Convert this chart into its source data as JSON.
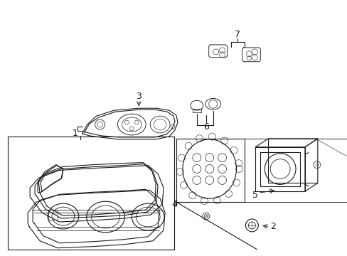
{
  "bg_color": "#ffffff",
  "line_color": "#1a1a1a",
  "lw": 0.8,
  "fig_w": 4.89,
  "fig_h": 3.6,
  "dpi": 100
}
